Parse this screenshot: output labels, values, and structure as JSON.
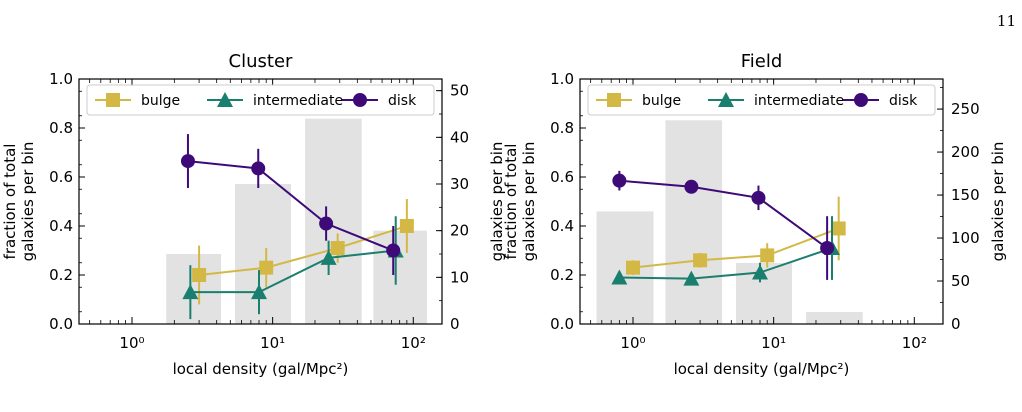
{
  "page_number": "11",
  "colors": {
    "bulge": "#d4b846",
    "intermediate": "#1a7f6e",
    "disk": "#3e0a78",
    "bars": "#e2e2e2"
  },
  "chart_data": [
    {
      "type": "line",
      "title": "Cluster",
      "xlabel": "local density (gal/Mpc²)",
      "ylabel_left": "fraction of total galaxies per bin",
      "ylabel_right": "galaxies per bin",
      "x_scale": "log",
      "xlim": [
        0.42,
        160
      ],
      "ylim": [
        0,
        1.0
      ],
      "y2lim": [
        0,
        52.5
      ],
      "xticks": [
        {
          "value": 1,
          "label": "10⁰"
        },
        {
          "value": 10,
          "label": "10¹"
        },
        {
          "value": 100,
          "label": "10²"
        }
      ],
      "yticks": [
        "0.0",
        "0.2",
        "0.4",
        "0.6",
        "0.8",
        "1.0"
      ],
      "y2ticks": [
        "0",
        "10",
        "20",
        "30",
        "40",
        "50"
      ],
      "legend": {
        "position": "top",
        "entries": [
          "bulge",
          "intermediate",
          "disk"
        ]
      },
      "bars": [
        {
          "x_lo": 1.75,
          "x_hi": 4.3,
          "count": 15
        },
        {
          "x_lo": 5.4,
          "x_hi": 13.5,
          "count": 30
        },
        {
          "x_lo": 17,
          "x_hi": 43,
          "count": 44
        },
        {
          "x_lo": 52,
          "x_hi": 125,
          "count": 20
        }
      ],
      "series": [
        {
          "name": "bulge",
          "marker": "square",
          "x": [
            3.0,
            9.0,
            29,
            90
          ],
          "y": [
            0.2,
            0.23,
            0.31,
            0.4
          ],
          "err": [
            0.12,
            0.08,
            0.06,
            0.11
          ]
        },
        {
          "name": "intermediate",
          "marker": "triangle",
          "x": [
            2.6,
            8.0,
            25,
            75
          ],
          "y": [
            0.13,
            0.13,
            0.27,
            0.3
          ],
          "err": [
            0.11,
            0.09,
            0.07,
            0.14
          ]
        },
        {
          "name": "disk",
          "marker": "circle",
          "x": [
            2.5,
            7.9,
            24,
            72
          ],
          "y": [
            0.665,
            0.635,
            0.41,
            0.3
          ],
          "err": [
            0.11,
            0.08,
            0.07,
            0.1
          ]
        }
      ]
    },
    {
      "type": "line",
      "title": "Field",
      "xlabel": "local density (gal/Mpc²)",
      "ylabel_left": "fraction of total galaxies per bin",
      "ylabel_right": "galaxies per bin",
      "x_scale": "log",
      "xlim": [
        0.42,
        160
      ],
      "ylim": [
        0,
        1.0
      ],
      "y2lim": [
        0,
        285
      ],
      "xticks": [
        {
          "value": 1,
          "label": "10⁰"
        },
        {
          "value": 10,
          "label": "10¹"
        },
        {
          "value": 100,
          "label": "10²"
        }
      ],
      "yticks": [
        "0.0",
        "0.2",
        "0.4",
        "0.6",
        "0.8",
        "1.0"
      ],
      "y2ticks": [
        "0",
        "50",
        "100",
        "150",
        "200",
        "250"
      ],
      "legend": {
        "position": "top",
        "entries": [
          "bulge",
          "intermediate",
          "disk"
        ]
      },
      "bars": [
        {
          "x_lo": 0.55,
          "x_hi": 1.4,
          "count": 131
        },
        {
          "x_lo": 1.7,
          "x_hi": 4.3,
          "count": 237
        },
        {
          "x_lo": 5.4,
          "x_hi": 13.5,
          "count": 71
        },
        {
          "x_lo": 17,
          "x_hi": 43,
          "count": 14
        }
      ],
      "series": [
        {
          "name": "bulge",
          "marker": "square",
          "x": [
            1.0,
            3.0,
            9.0,
            29
          ],
          "y": [
            0.23,
            0.26,
            0.28,
            0.39
          ],
          "err": [
            0.03,
            0.03,
            0.05,
            0.13
          ]
        },
        {
          "name": "intermediate",
          "marker": "triangle",
          "x": [
            0.8,
            2.6,
            8.0,
            26
          ],
          "y": [
            0.19,
            0.185,
            0.21,
            0.31
          ],
          "err": [
            0.02,
            0.02,
            0.04,
            0.13
          ]
        },
        {
          "name": "disk",
          "marker": "circle",
          "x": [
            0.8,
            2.6,
            7.8,
            24
          ],
          "y": [
            0.585,
            0.56,
            0.515,
            0.31
          ],
          "err": [
            0.04,
            0.025,
            0.05,
            0.13
          ]
        }
      ]
    }
  ]
}
